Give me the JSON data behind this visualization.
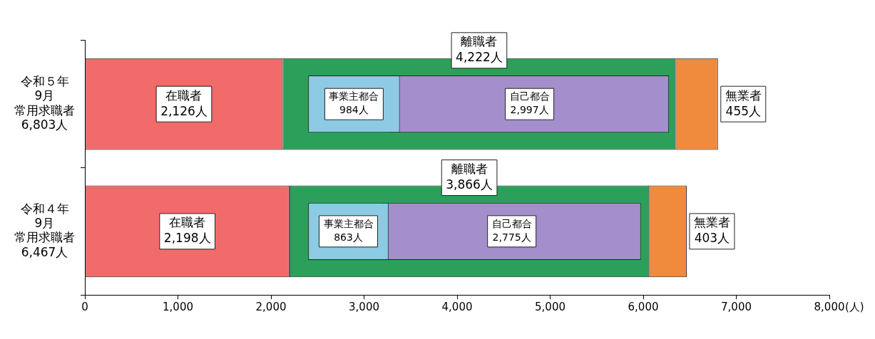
{
  "chart_data": {
    "type": "bar",
    "orientation": "horizontal",
    "categories": [
      "令和５年9月常用求職者6,803人",
      "令和４年9月常用求職者6,467人"
    ],
    "series": [
      {
        "name": "在職者",
        "color": "#f26b6b",
        "values": [
          2126,
          2198
        ],
        "base": [
          0,
          0
        ],
        "value_labels": [
          "2,126人",
          "2,198人"
        ]
      },
      {
        "name": "離職者",
        "color": "#2ca05a",
        "values": [
          4222,
          3866
        ],
        "base": [
          2126,
          2198
        ],
        "value_labels": [
          "4,222人",
          "3,866人"
        ]
      },
      {
        "name": "無業者",
        "color": "#f08a3c",
        "values": [
          455,
          403
        ],
        "base": [
          6348,
          6064
        ],
        "value_labels": [
          "455人",
          "403人"
        ]
      },
      {
        "name": "事業主都合",
        "color": "#8ccbe3",
        "values": [
          984,
          863
        ],
        "base": [
          2400,
          2400
        ],
        "value_labels": [
          "984人",
          "863人"
        ]
      },
      {
        "name": "自己都合",
        "color": "#a48fcc",
        "values": [
          2997,
          2775
        ],
        "base": [
          3280,
          3200
        ],
        "value_labels": [
          "2,997人",
          "2,775人"
        ]
      }
    ],
    "xlim": [
      0,
      8000
    ],
    "xticks": [
      0,
      {
        "value": 1000,
        "label": "1,000"
      },
      {
        "value": 2000,
        "label": "2,000"
      },
      {
        "value": 3000,
        "label": "3,000"
      },
      {
        "value": 4000,
        "label": "4,000"
      },
      {
        "value": 5000,
        "label": "5,000"
      },
      {
        "value": 6000,
        "label": "6,000"
      },
      {
        "value": 7000,
        "label": "7,000"
      },
      {
        "value": 8000,
        "label": "8,000"
      }
    ],
    "xlabel": "(人)",
    "grid": false,
    "legend": false
  }
}
